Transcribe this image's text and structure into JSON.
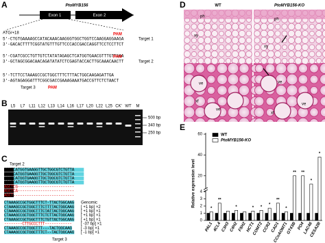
{
  "panel_labels": [
    "A",
    "B",
    "C",
    "D",
    "E"
  ],
  "panel_a": {
    "gene": "PtoMYB156",
    "exons": [
      "Exon 1",
      "Exon 2"
    ],
    "start": "ATG/+18",
    "sequences": [
      {
        "seq": "5'-CTGTGAAAAGCCATACAAACAAGGGTGGCTGGTCCAAGGAGGAAGA",
        "target": "Target 1"
      },
      {
        "seq": "3'-GACACTTTTCGGTATGTTTGTTCCCACCGACCAGGTTCCTCCTTCT",
        "target": null
      },
      {
        "seq": "5'-CGATCGCCTGTTGTCTATATAGAGCTCATGGTGAACGTTTGTTGAA",
        "target": null
      },
      {
        "seq": "3'-GCTAGCGGACAACAGATATATCTCGAGTACCACTTGCAAACAACTT",
        "target": "Target 2"
      },
      {
        "seq": "5'-TCTTCCTAAAGCCGCTGGCTTTCTTTACTGGCAAGAGATTGA",
        "target": null
      },
      {
        "seq": "3'-AGTAGAGGATTTCGGCGACCGAAAGAAATGACCGTTCTCTAACT",
        "target": "Target 3"
      }
    ],
    "pam": "PAM"
  },
  "panel_b": {
    "lanes": [
      "L5",
      "L7",
      "L11",
      "L12",
      "L13",
      "L14",
      "L16",
      "L17",
      "L20",
      "L22",
      "L25",
      "CK'",
      "WT",
      "M"
    ],
    "sizes": [
      "500 bp",
      "340 bp",
      "250 bp"
    ]
  },
  "panel_c": {
    "targets": [
      "Target 2",
      "Target 3"
    ],
    "top_rows": [
      "AGCTCATGGTGAAGGTTGCTGGCGTCTGTTA",
      "AGCTCATGGTGAAGGTTGCTGGCGTCTGTTA",
      "AGCTCATGGTGAAGGTTGCTGGCGTCTGTTA",
      "AGCTCATGGTGAAGGTTGCTGGCGTCTGTTA",
      "AGCTCG-------------------------",
      "AGCTCA-------------------------",
      "AGCT---------------------------"
    ],
    "bottom_rows": [
      {
        "seq": "CTAAAGCCGCTGGCTTTCT-TTACTGGCAAG",
        "note": "Genomic"
      },
      {
        "seq": "CTAAAGCCGCTGGCTTTCTTTTACTGGCAAG",
        "note": "[ +1 bp] ×2"
      },
      {
        "seq": "CTAAAGCCGCTGGCTTTCTATTACTGGCAAG",
        "note": "[ +1 bp] ×1"
      },
      {
        "seq": "CTAAAGCCGCTGGCTTTCTCTTACTGGCAAG",
        "note": "[ +1 bp] ×1"
      },
      {
        "seq": "CTAAAGCCGCTGGCTTTCTGTTACTGGCAAG",
        "note": "[ +1 bp] ×1"
      },
      {
        "seq": "--------CTTGCCCTTT------------",
        "note": "[ -37 bp] ×1"
      },
      {
        "seq": "CTAAAGCCGCTGGCTTT---TACTGGCAAG",
        "note": "[ -3 bp] ×1"
      },
      {
        "seq": "CTAAAGCCGCTGGCTTTCT--TACTGGCAAG",
        "note": "[ -1 bp] ×1"
      }
    ]
  },
  "panel_d": {
    "columns": [
      "WT",
      "PtoMYB156-KO"
    ],
    "tissue_labels": [
      "ph",
      "xy",
      "ph",
      "xy",
      "ve",
      "ve",
      "xf",
      "ve",
      "ve",
      "xf"
    ]
  },
  "chart_data": {
    "type": "bar",
    "y_label": "Relative expression level",
    "categories": [
      "PAL1",
      "4CL4",
      "C3H3",
      "C4H2",
      "F5H2",
      "HCT1",
      "COMT2",
      "CCR2",
      "CAD1",
      "CCoAOMT1",
      "GT43B",
      "PO4",
      "LAC46",
      "CESA2B"
    ],
    "series": [
      {
        "name": "WT",
        "color": "#000000",
        "values": [
          1,
          1,
          1,
          1,
          1,
          1,
          1,
          1,
          1,
          1,
          1,
          1,
          1,
          1
        ]
      },
      {
        "name": "PtoMYB156-KO",
        "color": "#ffffff",
        "values": [
          1.2,
          2.4,
          1.3,
          1.4,
          1.2,
          1.3,
          1.4,
          1.7,
          2.4,
          1.2,
          20,
          20,
          12,
          38
        ],
        "significance": [
          "*",
          "**",
          null,
          "*",
          null,
          "*",
          "*",
          "*",
          "**",
          "*",
          "**",
          "**",
          "*",
          "*"
        ]
      }
    ],
    "ylim": [
      0,
      60
    ],
    "axis_break": [
      4,
      10
    ],
    "yticks": [
      0,
      1,
      2,
      3,
      4,
      20,
      40,
      60
    ],
    "legend": "top-left"
  }
}
